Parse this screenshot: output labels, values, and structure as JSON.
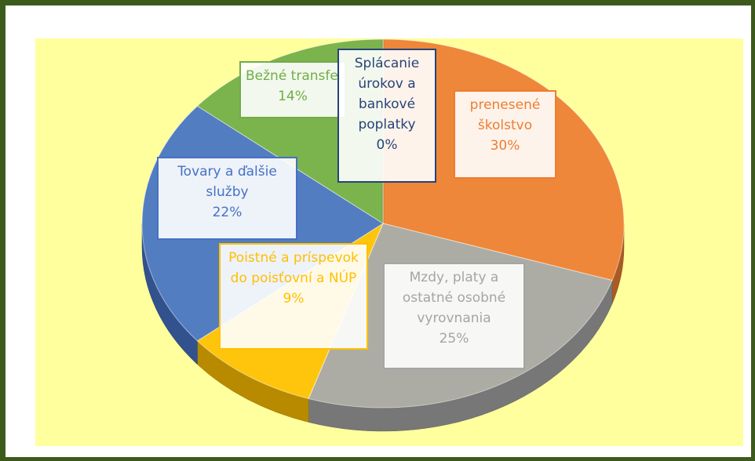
{
  "chart_data": {
    "type": "pie",
    "categories": [
      "Splácanie úrokov a bankové poplatky",
      "prenesené školstvo",
      "Mzdy, platy a ostatné osobné vyrovnania",
      "Poistné a príspevok do poisťovní a NÚP",
      "Tovary a ďalšie služby",
      "Bežné transfery"
    ],
    "values": [
      0,
      30,
      25,
      9,
      22,
      14
    ],
    "value_labels": [
      "0%",
      "30%",
      "25%",
      "9%",
      "22%",
      "14%"
    ],
    "colors": [
      "#264478",
      "#ed7d31",
      "#a5a5a5",
      "#ffc000",
      "#4472c4",
      "#70ad47"
    ]
  }
}
